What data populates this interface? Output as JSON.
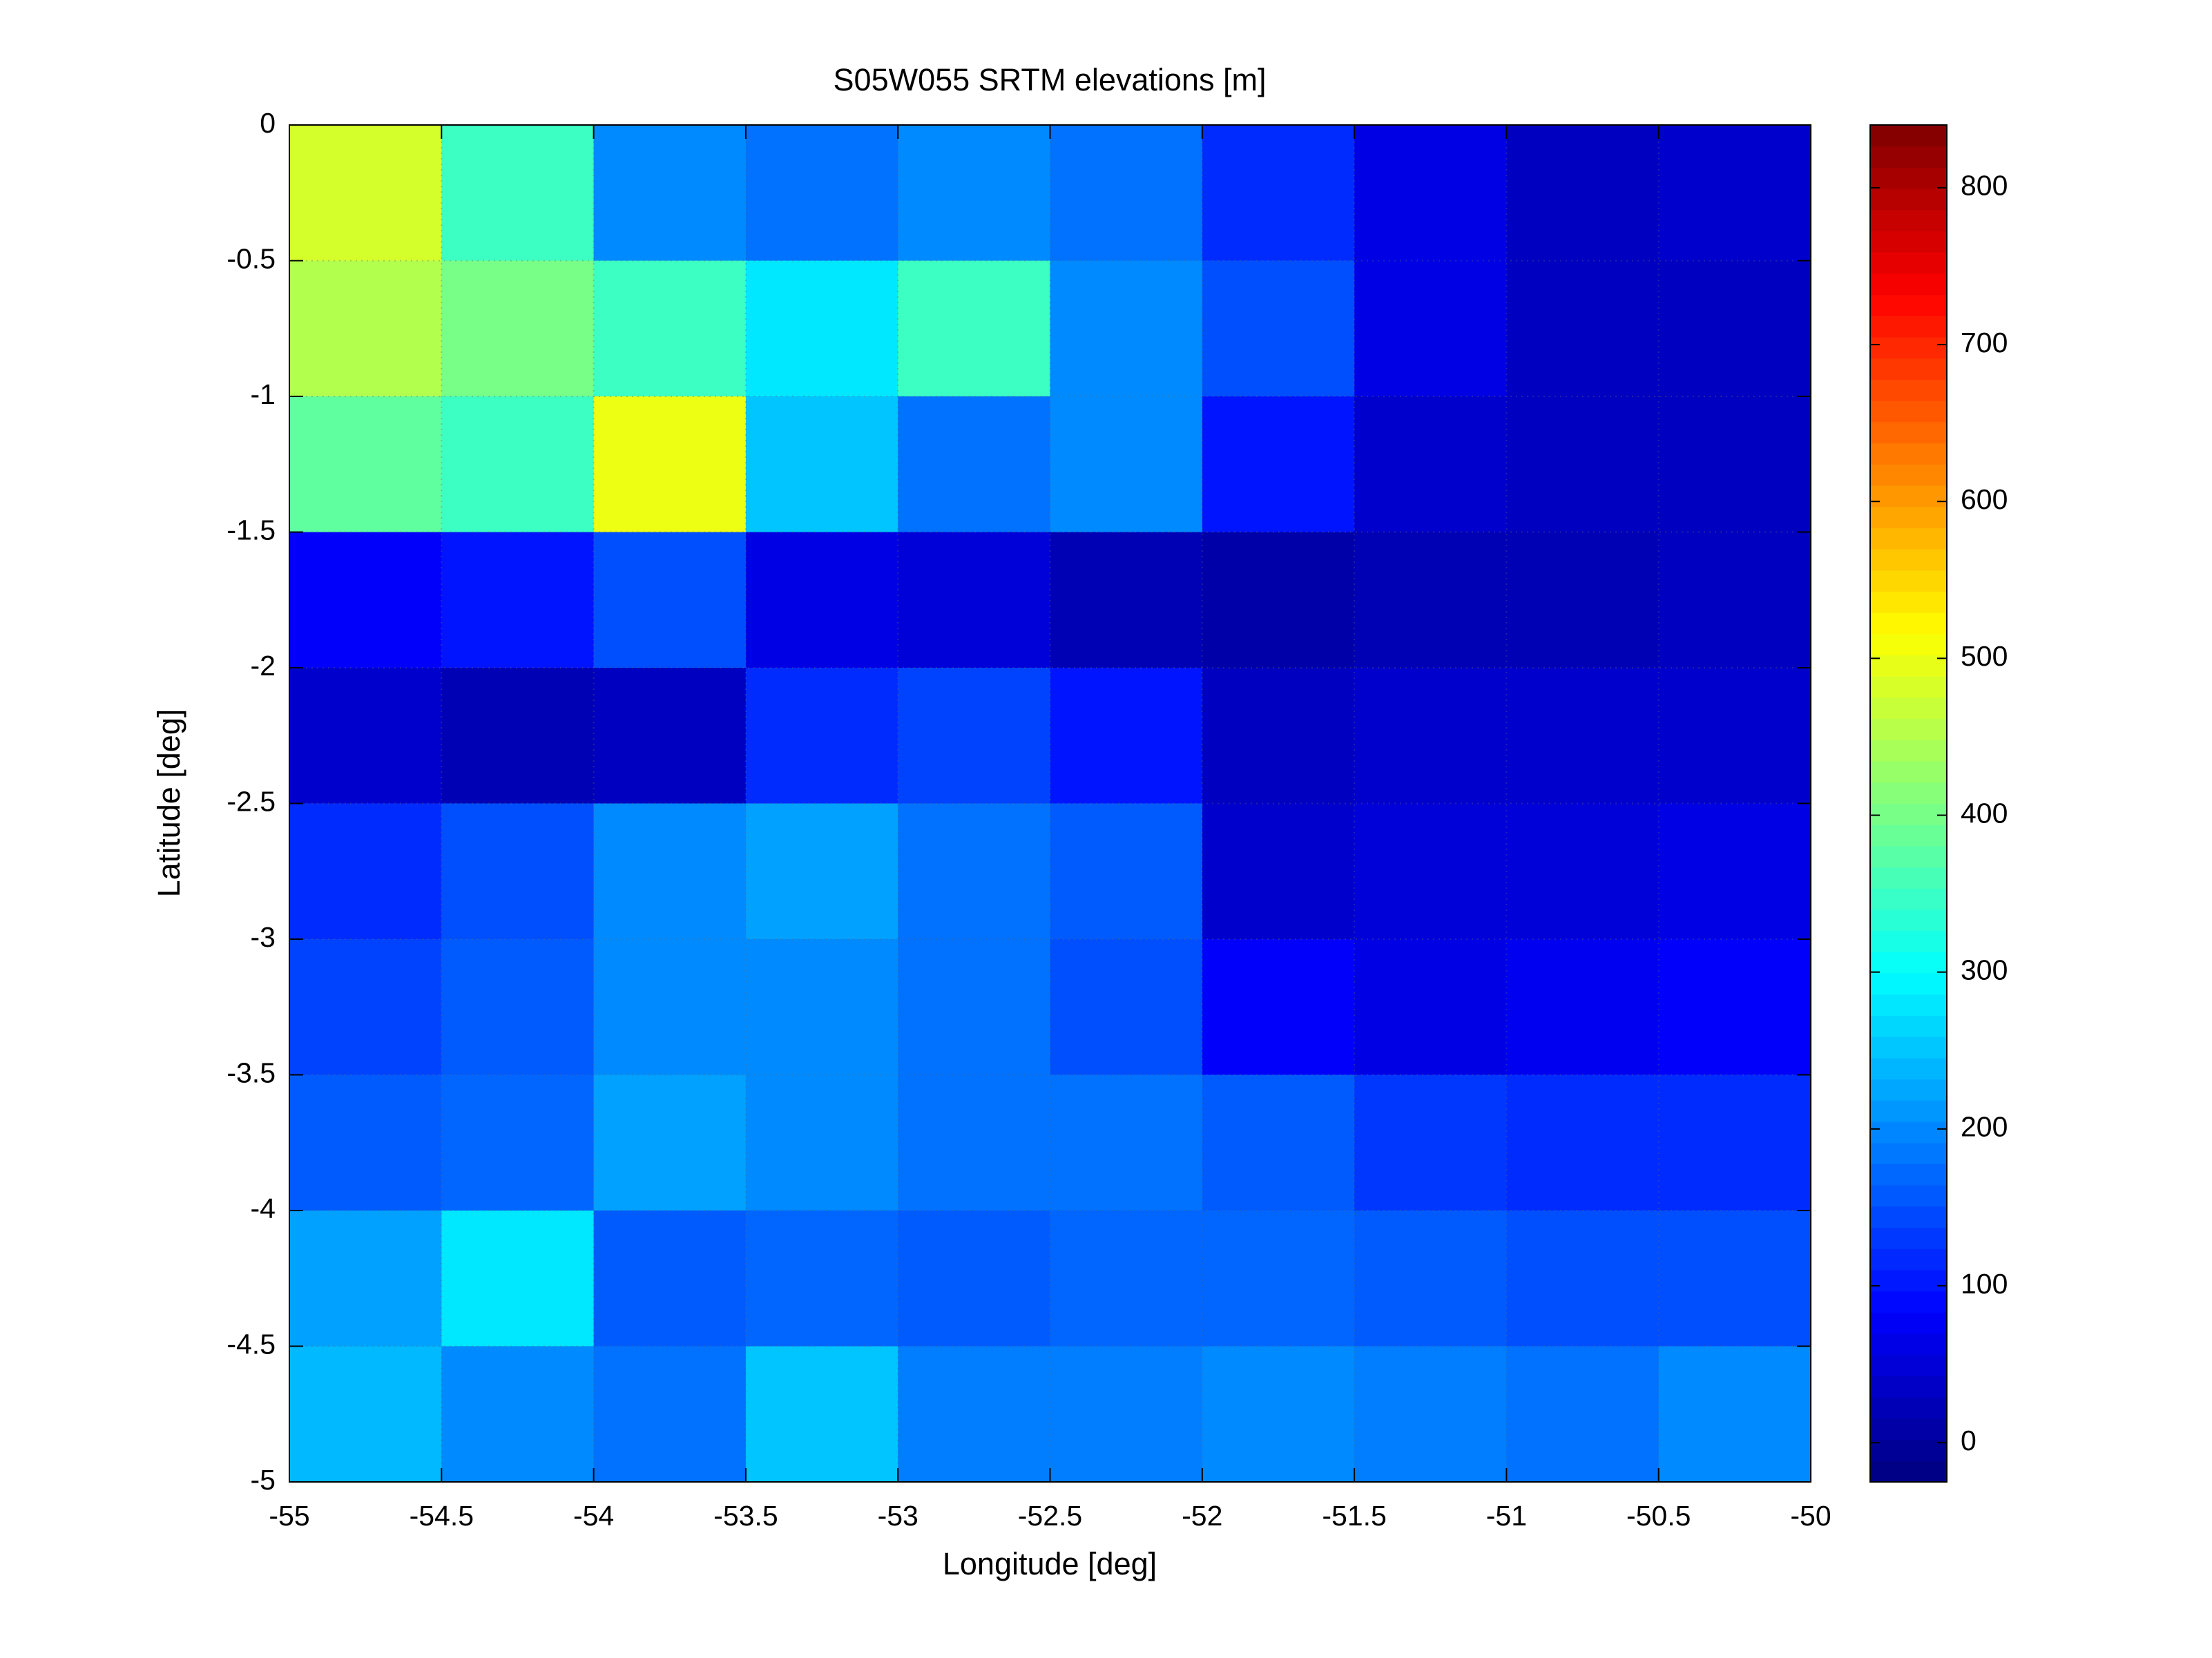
{
  "chart_data": {
    "type": "heatmap",
    "title": "S05W055 SRTM elevations [m]",
    "xlabel": "Longitude [deg]",
    "ylabel": "Latitude [deg]",
    "xlim": [
      -55,
      -50
    ],
    "xticks": [
      -55,
      -54.5,
      -54,
      -53.5,
      -53,
      -52.5,
      -52,
      -51.5,
      -51,
      -50.5,
      -50
    ],
    "ylim": [
      -5,
      0
    ],
    "yticks": [
      0,
      -0.5,
      -1,
      -1.5,
      -2,
      -2.5,
      -3,
      -3.5,
      -4,
      -4.5,
      -5
    ],
    "grid": true,
    "colormap": "jet",
    "clim": [
      -25,
      840
    ],
    "cticks": [
      0,
      100,
      200,
      300,
      400,
      500,
      600,
      700,
      800
    ],
    "z": [
      [
        480,
        350,
        200,
        180,
        200,
        180,
        120,
        60,
        30,
        40
      ],
      [
        450,
        400,
        350,
        280,
        350,
        200,
        150,
        60,
        30,
        30
      ],
      [
        380,
        350,
        500,
        250,
        180,
        200,
        100,
        40,
        30,
        30
      ],
      [
        80,
        100,
        150,
        60,
        50,
        20,
        10,
        20,
        20,
        30
      ],
      [
        40,
        20,
        30,
        120,
        140,
        100,
        30,
        40,
        40,
        40
      ],
      [
        120,
        150,
        200,
        220,
        180,
        160,
        40,
        50,
        50,
        60
      ],
      [
        140,
        160,
        200,
        200,
        180,
        150,
        80,
        60,
        70,
        80
      ],
      [
        160,
        170,
        220,
        200,
        180,
        180,
        160,
        130,
        120,
        120
      ],
      [
        220,
        280,
        160,
        170,
        160,
        170,
        170,
        160,
        150,
        150
      ],
      [
        240,
        200,
        180,
        250,
        190,
        190,
        200,
        190,
        180,
        200
      ]
    ]
  }
}
